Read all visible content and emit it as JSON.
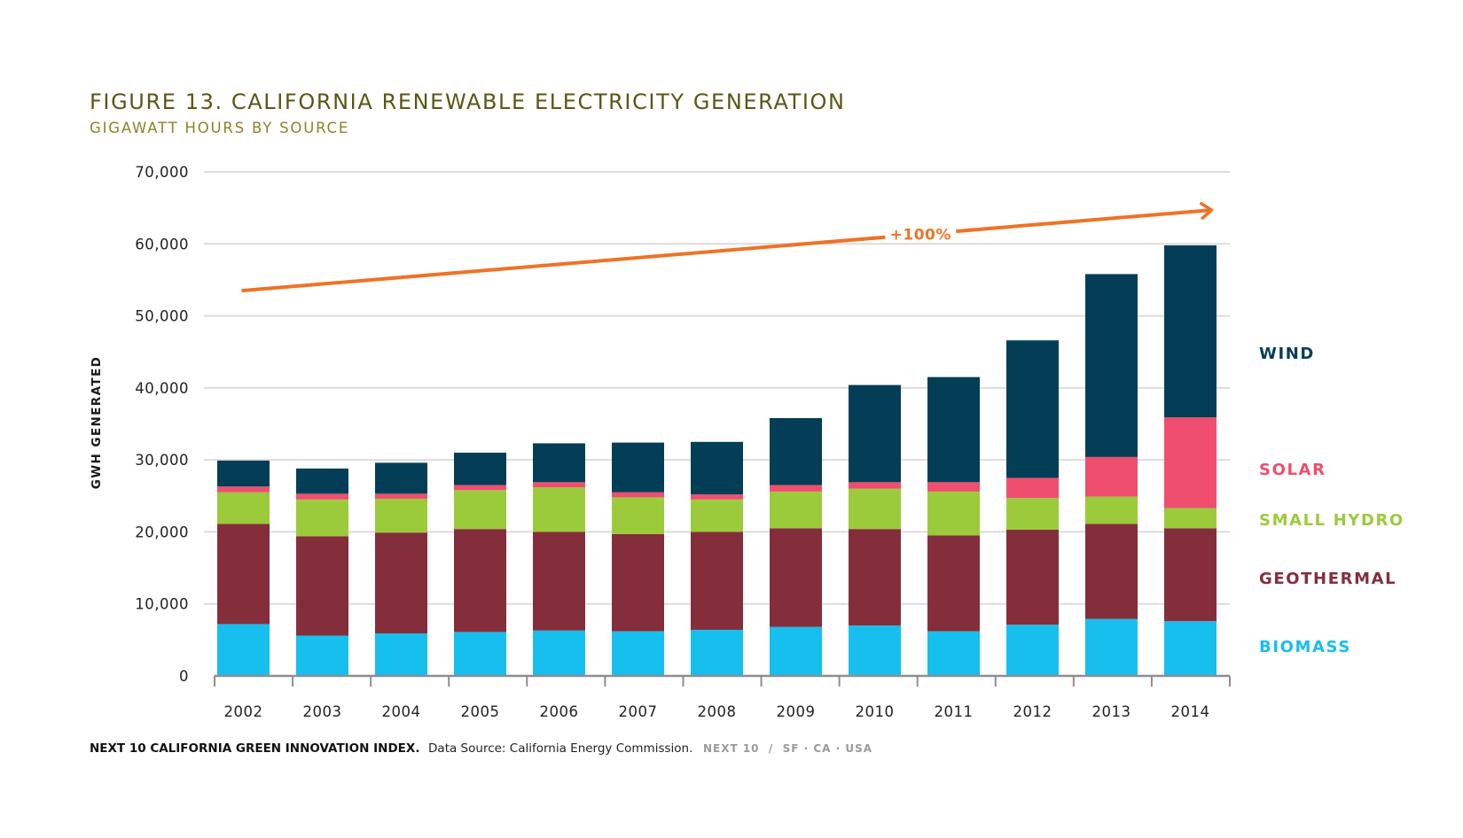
{
  "header": {
    "title": "FIGURE 13. CALIFORNIA RENEWABLE ELECTRICITY GENERATION",
    "subtitle": "GIGAWATT HOURS BY SOURCE"
  },
  "footer": {
    "bold_text": "NEXT 10 CALIFORNIA GREEN INNOVATION INDEX.",
    "text": "Data Source: California Energy Commission.",
    "brand": "NEXT 10  /  SF · CA · USA"
  },
  "chart_data": {
    "type": "bar",
    "stacked": true,
    "title": "FIGURE 13. CALIFORNIA RENEWABLE ELECTRICITY GENERATION",
    "subtitle": "GIGAWATT HOURS BY SOURCE",
    "xlabel": "",
    "ylabel": "GWH GENERATED",
    "ylim": [
      0,
      70000
    ],
    "yticks": [
      0,
      10000,
      20000,
      30000,
      40000,
      50000,
      60000,
      70000
    ],
    "ytick_labels": [
      "0",
      "10,000",
      "20,000",
      "30,000",
      "40,000",
      "50,000",
      "60,000",
      "70,000"
    ],
    "grid": true,
    "legend_position": "right",
    "categories": [
      "2002",
      "2003",
      "2004",
      "2005",
      "2006",
      "2007",
      "2008",
      "2009",
      "2010",
      "2011",
      "2012",
      "2013",
      "2014"
    ],
    "series": [
      {
        "name": "BIOMASS",
        "color": "#17bfee",
        "values": [
          7200,
          5600,
          5900,
          6100,
          6300,
          6200,
          6400,
          6800,
          7000,
          6200,
          7100,
          7900,
          7600
        ]
      },
      {
        "name": "GEOTHERMAL",
        "color": "#842e3c",
        "values": [
          13900,
          13800,
          14000,
          14300,
          13700,
          13500,
          13600,
          13700,
          13400,
          13300,
          13200,
          13200,
          12900
        ]
      },
      {
        "name": "SMALL HYDRO",
        "color": "#9bcb3b",
        "values": [
          4400,
          5100,
          4700,
          5400,
          6200,
          5100,
          4500,
          5100,
          5600,
          6100,
          4400,
          3800,
          2800
        ]
      },
      {
        "name": "SOLAR",
        "color": "#ef4e6e",
        "values": [
          800,
          800,
          700,
          700,
          700,
          700,
          700,
          900,
          900,
          1300,
          2800,
          5500,
          12600
        ]
      },
      {
        "name": "WIND",
        "color": "#043e56",
        "values": [
          3600,
          3500,
          4300,
          4500,
          5400,
          6900,
          7300,
          9300,
          13500,
          14600,
          19100,
          25400,
          23900
        ]
      }
    ],
    "annotation": {
      "text": "+100%",
      "color": "#ee7326",
      "from": {
        "x": "2002",
        "y": 53500
      },
      "to": {
        "x": "2014",
        "y": 64700
      }
    }
  }
}
